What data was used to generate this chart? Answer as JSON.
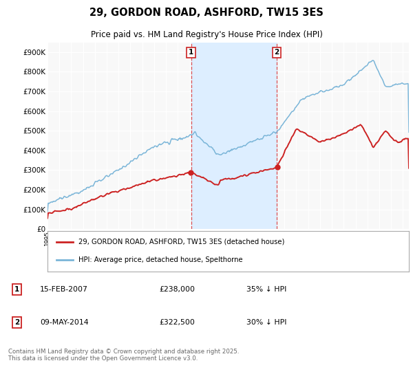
{
  "title": "29, GORDON ROAD, ASHFORD, TW15 3ES",
  "subtitle": "Price paid vs. HM Land Registry's House Price Index (HPI)",
  "ylim": [
    0,
    950000
  ],
  "yticks": [
    0,
    100000,
    200000,
    300000,
    400000,
    500000,
    600000,
    700000,
    800000,
    900000
  ],
  "ytick_labels": [
    "£0",
    "£100K",
    "£200K",
    "£300K",
    "£400K",
    "£500K",
    "£600K",
    "£700K",
    "£800K",
    "£900K"
  ],
  "hpi_color": "#7ab5d8",
  "price_color": "#cc2222",
  "shaded_color": "#ddeeff",
  "event1_year": 2007.12,
  "event2_year": 2014.36,
  "legend_line1": "29, GORDON ROAD, ASHFORD, TW15 3ES (detached house)",
  "legend_line2": "HPI: Average price, detached house, Spelthorne",
  "footer": "Contains HM Land Registry data © Crown copyright and database right 2025.\nThis data is licensed under the Open Government Licence v3.0.",
  "background_color": "#ffffff",
  "plot_bg_color": "#f8f8f8"
}
